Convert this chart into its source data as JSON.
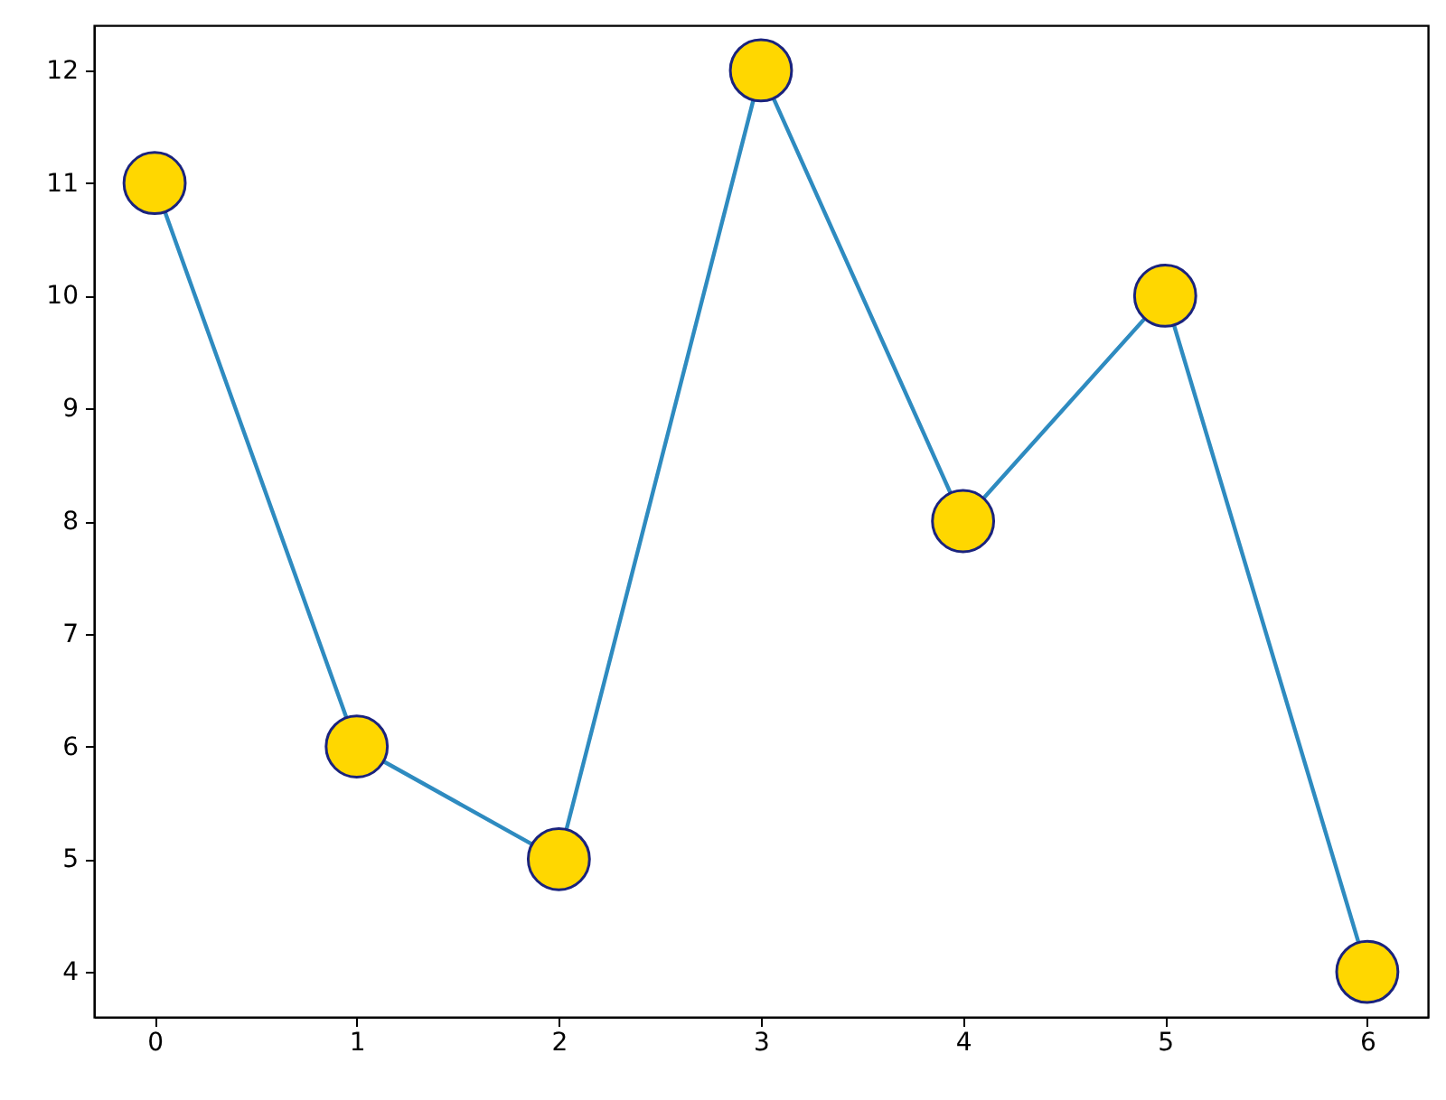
{
  "chart_data": {
    "type": "line",
    "x": [
      0,
      1,
      2,
      3,
      4,
      5,
      6
    ],
    "series": [
      {
        "color": "#2e8bc0",
        "colors": [
          "#ffd700",
          "#ffd700",
          "#ffd700",
          "#ffd700",
          "#ffd700",
          "#ffd700",
          "#ffd700"
        ],
        "values": [
          11,
          6,
          5,
          12,
          8,
          10,
          4
        ]
      }
    ],
    "xlim": [
      -0.3,
      6.3
    ],
    "xticks": [
      0,
      1,
      2,
      3,
      4,
      5,
      6
    ],
    "ylim": [
      3.6,
      12.4
    ],
    "yticks": [
      4,
      5,
      6,
      7,
      8,
      9,
      10,
      11,
      12
    ],
    "marker": "circle",
    "grid": false
  }
}
